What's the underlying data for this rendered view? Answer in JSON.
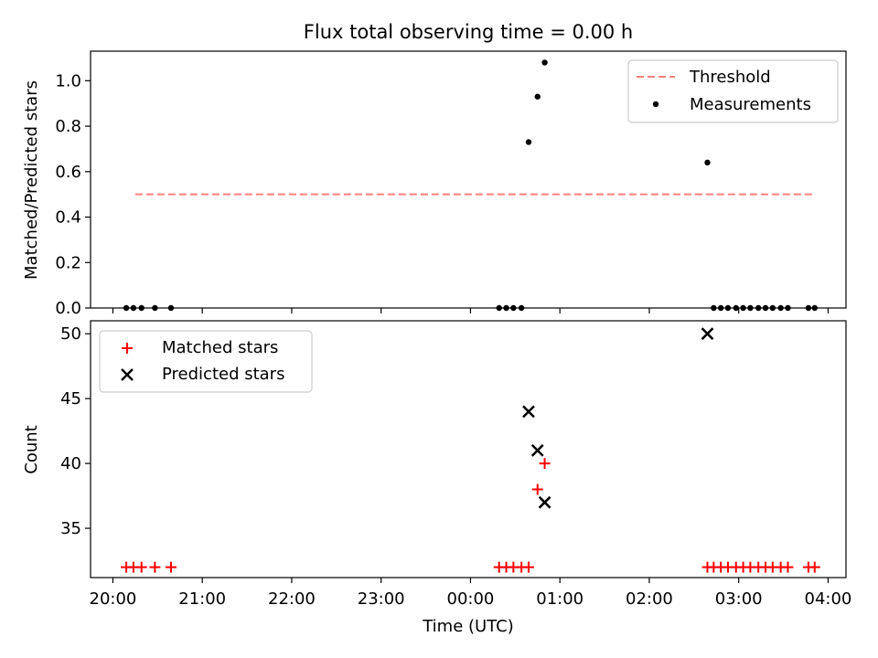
{
  "chart_data": [
    {
      "type": "scatter",
      "title": "Flux total observing time = 0.00 h",
      "xlabel": "",
      "ylabel": "Matched/Predicted stars",
      "ylim": [
        0,
        1.13
      ],
      "xlim_hours": [
        19.75,
        28.2
      ],
      "yticks": [
        "0.0",
        "0.2",
        "0.4",
        "0.6",
        "0.8",
        "1.0"
      ],
      "yticks_values": [
        0,
        0.2,
        0.4,
        0.6,
        0.8,
        1.0
      ],
      "legend": {
        "placement": "upper right",
        "entries": [
          "Threshold",
          "Measurements"
        ]
      },
      "grid": false,
      "series": [
        {
          "name": "Threshold",
          "kind": "line",
          "style": "dashed",
          "color": "#ff7f7f",
          "x": [
            20.25,
            27.85
          ],
          "y": [
            0.5,
            0.5
          ]
        },
        {
          "name": "Measurements",
          "kind": "scatter",
          "color": "#000000",
          "x": [
            20.15,
            20.23,
            20.32,
            20.47,
            20.65,
            24.32,
            24.4,
            24.48,
            24.57,
            24.65,
            24.75,
            24.83,
            26.65,
            26.72,
            26.8,
            26.88,
            26.97,
            27.05,
            27.13,
            27.22,
            27.3,
            27.38,
            27.47,
            27.55,
            27.78,
            27.85
          ],
          "y": [
            0,
            0,
            0,
            0,
            0,
            0,
            0,
            0,
            0,
            0.73,
            0.93,
            1.08,
            0.64,
            0,
            0,
            0,
            0,
            0,
            0,
            0,
            0,
            0,
            0,
            0,
            0,
            0
          ]
        }
      ]
    },
    {
      "type": "scatter",
      "title": "",
      "xlabel": "Time (UTC)",
      "ylabel": "Count",
      "ylim": [
        31.2,
        51
      ],
      "xlim_hours": [
        19.75,
        28.2
      ],
      "yticks": [
        "35",
        "40",
        "45",
        "50"
      ],
      "yticks_values": [
        35,
        40,
        45,
        50
      ],
      "xticks": [
        "20:00",
        "21:00",
        "22:00",
        "23:00",
        "00:00",
        "01:00",
        "02:00",
        "03:00",
        "04:00"
      ],
      "xticks_hours": [
        20,
        21,
        22,
        23,
        24,
        25,
        26,
        27,
        28
      ],
      "legend": {
        "placement": "upper left",
        "entries": [
          "Matched stars",
          "Predicted stars"
        ]
      },
      "grid": false,
      "series": [
        {
          "name": "Matched stars",
          "marker": "+",
          "color": "#ff0000",
          "x": [
            20.15,
            20.23,
            20.32,
            20.47,
            20.65,
            24.32,
            24.4,
            24.48,
            24.57,
            24.65,
            24.75,
            24.83,
            26.65,
            26.72,
            26.8,
            26.88,
            26.97,
            27.05,
            27.13,
            27.22,
            27.3,
            27.38,
            27.47,
            27.55,
            27.78,
            27.85
          ],
          "y": [
            32,
            32,
            32,
            32,
            32,
            32,
            32,
            32,
            32,
            32,
            38,
            40,
            32,
            32,
            32,
            32,
            32,
            32,
            32,
            32,
            32,
            32,
            32,
            32,
            32,
            32
          ]
        },
        {
          "name": "Predicted stars",
          "marker": "x",
          "color": "#000000",
          "x": [
            24.65,
            24.75,
            24.83,
            26.65
          ],
          "y": [
            44,
            41,
            37,
            50
          ]
        }
      ]
    }
  ]
}
